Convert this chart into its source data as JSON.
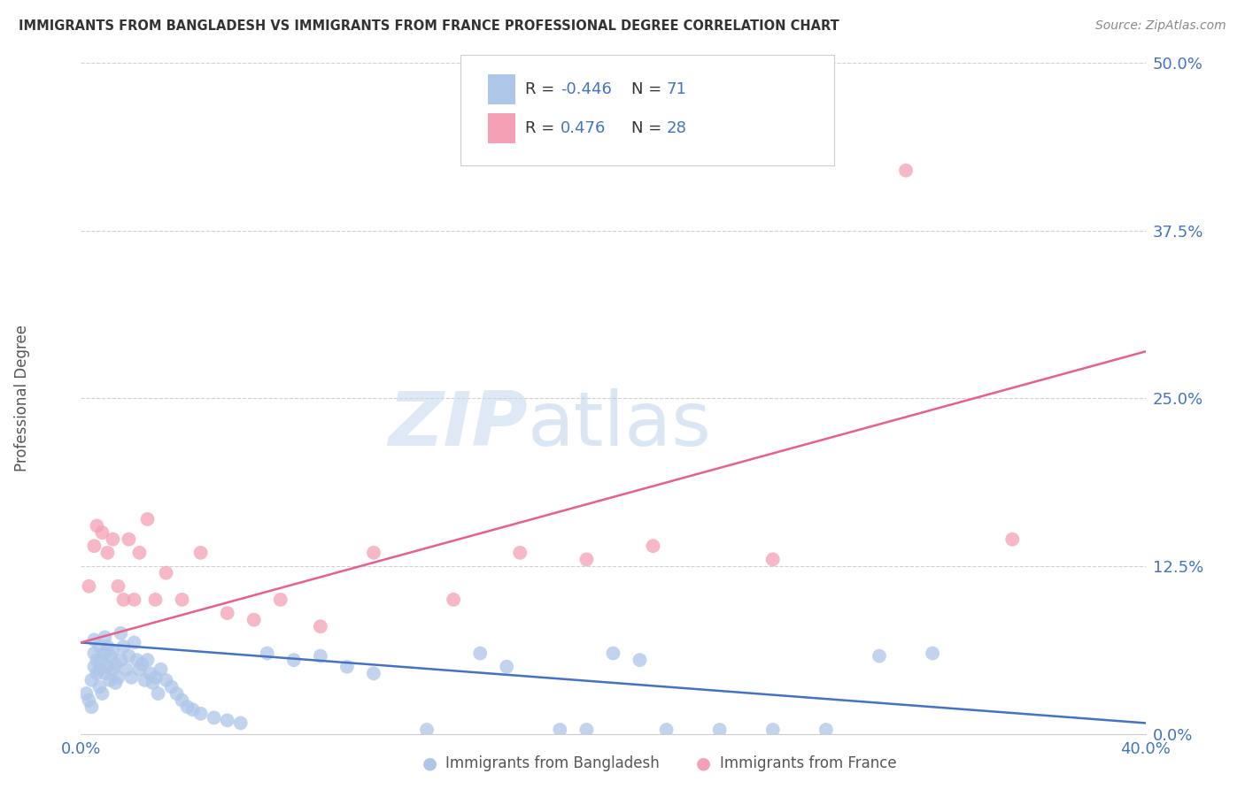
{
  "title": "IMMIGRANTS FROM BANGLADESH VS IMMIGRANTS FROM FRANCE PROFESSIONAL DEGREE CORRELATION CHART",
  "source": "Source: ZipAtlas.com",
  "ylabel": "Professional Degree",
  "ylabel_ticks": [
    "0.0%",
    "12.5%",
    "25.0%",
    "37.5%",
    "50.0%"
  ],
  "ylabel_tick_vals": [
    0.0,
    0.125,
    0.25,
    0.375,
    0.5
  ],
  "xlim": [
    0.0,
    0.4
  ],
  "ylim": [
    0.0,
    0.5
  ],
  "grid_color": "#cccccc",
  "background_color": "#ffffff",
  "blue_color": "#aec6e8",
  "pink_color": "#f4a0b5",
  "blue_line_color": "#4472c4",
  "pink_line_color": "#e8608a",
  "title_color": "#333333",
  "axis_label_color": "#4472c4",
  "blue_scatter_x": [
    0.002,
    0.003,
    0.004,
    0.004,
    0.005,
    0.005,
    0.005,
    0.006,
    0.006,
    0.007,
    0.007,
    0.007,
    0.008,
    0.008,
    0.009,
    0.009,
    0.009,
    0.01,
    0.01,
    0.011,
    0.011,
    0.012,
    0.012,
    0.013,
    0.013,
    0.014,
    0.015,
    0.015,
    0.016,
    0.017,
    0.018,
    0.019,
    0.02,
    0.021,
    0.022,
    0.023,
    0.024,
    0.025,
    0.026,
    0.027,
    0.028,
    0.029,
    0.03,
    0.032,
    0.034,
    0.036,
    0.038,
    0.04,
    0.042,
    0.045,
    0.05,
    0.055,
    0.06,
    0.07,
    0.08,
    0.09,
    0.1,
    0.11,
    0.13,
    0.15,
    0.16,
    0.18,
    0.19,
    0.2,
    0.21,
    0.22,
    0.24,
    0.26,
    0.28,
    0.3,
    0.32
  ],
  "blue_scatter_y": [
    0.03,
    0.025,
    0.02,
    0.04,
    0.05,
    0.06,
    0.07,
    0.045,
    0.055,
    0.035,
    0.048,
    0.065,
    0.03,
    0.055,
    0.045,
    0.06,
    0.072,
    0.05,
    0.065,
    0.04,
    0.058,
    0.048,
    0.062,
    0.038,
    0.052,
    0.042,
    0.075,
    0.055,
    0.065,
    0.048,
    0.058,
    0.042,
    0.068,
    0.055,
    0.048,
    0.052,
    0.04,
    0.055,
    0.045,
    0.038,
    0.042,
    0.03,
    0.048,
    0.04,
    0.035,
    0.03,
    0.025,
    0.02,
    0.018,
    0.015,
    0.012,
    0.01,
    0.008,
    0.06,
    0.055,
    0.058,
    0.05,
    0.045,
    0.003,
    0.06,
    0.05,
    0.003,
    0.003,
    0.06,
    0.055,
    0.003,
    0.003,
    0.003,
    0.003,
    0.058,
    0.06
  ],
  "pink_scatter_x": [
    0.003,
    0.005,
    0.006,
    0.008,
    0.01,
    0.012,
    0.014,
    0.016,
    0.018,
    0.02,
    0.022,
    0.025,
    0.028,
    0.032,
    0.038,
    0.045,
    0.055,
    0.065,
    0.075,
    0.09,
    0.11,
    0.14,
    0.165,
    0.19,
    0.215,
    0.26,
    0.31,
    0.35
  ],
  "pink_scatter_y": [
    0.11,
    0.14,
    0.155,
    0.15,
    0.135,
    0.145,
    0.11,
    0.1,
    0.145,
    0.1,
    0.135,
    0.16,
    0.1,
    0.12,
    0.1,
    0.135,
    0.09,
    0.085,
    0.1,
    0.08,
    0.135,
    0.1,
    0.135,
    0.13,
    0.14,
    0.13,
    0.42,
    0.145
  ],
  "blue_trend_x": [
    0.0,
    0.4
  ],
  "blue_trend_y": [
    0.068,
    0.008
  ],
  "pink_trend_x": [
    0.0,
    0.4
  ],
  "pink_trend_y": [
    0.068,
    0.285
  ]
}
